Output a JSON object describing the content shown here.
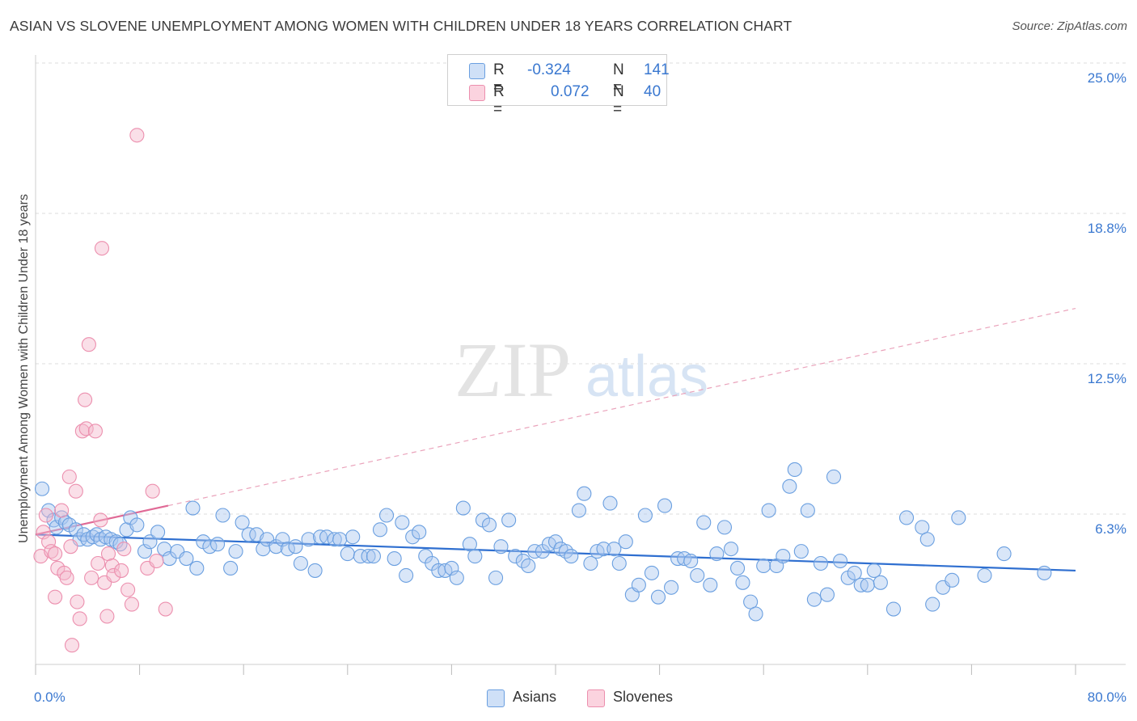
{
  "title": "ASIAN VS SLOVENE UNEMPLOYMENT AMONG WOMEN WITH CHILDREN UNDER 18 YEARS CORRELATION CHART",
  "source": "Source: ZipAtlas.com",
  "watermark": {
    "zip": "ZIP",
    "atlas": "atlas"
  },
  "legend": {
    "rows": [
      {
        "r_label": "R =",
        "r_value": "-0.324",
        "n_label": "N =",
        "n_value": "141",
        "color": "#aac8ef"
      },
      {
        "r_label": "R =",
        "r_value": "0.072",
        "n_label": "N =",
        "n_value": "40",
        "color": "#f5b8cb"
      }
    ]
  },
  "bottom_legend": [
    {
      "label": "Asians",
      "color": "#aac8ef"
    },
    {
      "label": "Slovenes",
      "color": "#f5b8cb"
    }
  ],
  "chart_data": {
    "type": "scatter",
    "title": "ASIAN VS SLOVENE UNEMPLOYMENT AMONG WOMEN WITH CHILDREN UNDER 18 YEARS CORRELATION CHART",
    "xlabel": "",
    "ylabel": "Unemployment Among Women with Children Under 18 years",
    "xlim": [
      0,
      80
    ],
    "ylim": [
      0,
      25
    ],
    "x_tick_labels": [
      "0.0%",
      "80.0%"
    ],
    "y_tick_labels": [
      "25.0%",
      "18.8%",
      "12.5%",
      "6.3%"
    ],
    "y_tick_values": [
      25.0,
      18.8,
      12.5,
      6.3
    ],
    "grid": "horizontal dashed",
    "legend_position": "top-center",
    "series": [
      {
        "name": "Asians",
        "color": "#aac8ef",
        "edge": "#6a9fe0",
        "trend": {
          "x": [
            0,
            80
          ],
          "y": [
            5.4,
            3.9
          ],
          "color": "#2f6fd0",
          "dashed_extension": false
        },
        "points": [
          [
            0.5,
            7.3
          ],
          [
            1.0,
            6.4
          ],
          [
            1.4,
            6.0
          ],
          [
            1.6,
            5.7
          ],
          [
            2.0,
            6.1
          ],
          [
            2.3,
            5.9
          ],
          [
            2.6,
            5.8
          ],
          [
            3.1,
            5.6
          ],
          [
            3.4,
            5.2
          ],
          [
            3.7,
            5.4
          ],
          [
            4.0,
            5.2
          ],
          [
            4.4,
            5.3
          ],
          [
            4.7,
            5.4
          ],
          [
            5.0,
            5.2
          ],
          [
            5.4,
            5.3
          ],
          [
            5.8,
            5.2
          ],
          [
            6.2,
            5.1
          ],
          [
            6.5,
            5.0
          ],
          [
            7.0,
            5.6
          ],
          [
            7.3,
            6.1
          ],
          [
            7.8,
            5.8
          ],
          [
            8.4,
            4.7
          ],
          [
            8.8,
            5.1
          ],
          [
            9.4,
            5.5
          ],
          [
            9.9,
            4.8
          ],
          [
            10.3,
            4.4
          ],
          [
            10.9,
            4.7
          ],
          [
            11.6,
            4.4
          ],
          [
            12.1,
            6.5
          ],
          [
            12.4,
            4.0
          ],
          [
            12.9,
            5.1
          ],
          [
            13.4,
            4.9
          ],
          [
            14.0,
            5.0
          ],
          [
            14.4,
            6.2
          ],
          [
            15.0,
            4.0
          ],
          [
            15.4,
            4.7
          ],
          [
            15.9,
            5.9
          ],
          [
            16.4,
            5.4
          ],
          [
            17.0,
            5.4
          ],
          [
            17.5,
            4.8
          ],
          [
            17.8,
            5.2
          ],
          [
            18.5,
            4.9
          ],
          [
            19.0,
            5.2
          ],
          [
            19.4,
            4.8
          ],
          [
            20.0,
            4.9
          ],
          [
            20.4,
            4.2
          ],
          [
            21.0,
            5.2
          ],
          [
            21.5,
            3.9
          ],
          [
            21.9,
            5.3
          ],
          [
            22.4,
            5.3
          ],
          [
            23.0,
            5.2
          ],
          [
            23.4,
            5.2
          ],
          [
            24.0,
            4.6
          ],
          [
            24.4,
            5.3
          ],
          [
            25.0,
            4.5
          ],
          [
            25.6,
            4.5
          ],
          [
            26.0,
            4.5
          ],
          [
            26.5,
            5.6
          ],
          [
            27.0,
            6.2
          ],
          [
            27.6,
            4.4
          ],
          [
            28.2,
            5.9
          ],
          [
            28.5,
            3.7
          ],
          [
            29.0,
            5.3
          ],
          [
            29.5,
            5.5
          ],
          [
            30.0,
            4.5
          ],
          [
            30.5,
            4.2
          ],
          [
            31.0,
            3.9
          ],
          [
            31.5,
            3.9
          ],
          [
            32.0,
            4.0
          ],
          [
            32.4,
            3.6
          ],
          [
            32.9,
            6.5
          ],
          [
            33.4,
            5.0
          ],
          [
            33.8,
            4.5
          ],
          [
            34.4,
            6.0
          ],
          [
            34.9,
            5.8
          ],
          [
            35.4,
            3.6
          ],
          [
            35.8,
            4.9
          ],
          [
            36.4,
            6.0
          ],
          [
            36.9,
            4.5
          ],
          [
            37.5,
            4.3
          ],
          [
            37.9,
            4.1
          ],
          [
            38.4,
            4.7
          ],
          [
            39.0,
            4.7
          ],
          [
            39.5,
            5.0
          ],
          [
            40.0,
            5.1
          ],
          [
            40.4,
            4.8
          ],
          [
            40.8,
            4.7
          ],
          [
            41.2,
            4.5
          ],
          [
            41.8,
            6.4
          ],
          [
            42.2,
            7.1
          ],
          [
            42.7,
            4.2
          ],
          [
            43.2,
            4.7
          ],
          [
            43.7,
            4.8
          ],
          [
            44.2,
            6.7
          ],
          [
            44.5,
            4.8
          ],
          [
            44.9,
            4.2
          ],
          [
            45.4,
            5.1
          ],
          [
            45.9,
            2.9
          ],
          [
            46.4,
            3.3
          ],
          [
            46.9,
            6.2
          ],
          [
            47.4,
            3.8
          ],
          [
            47.9,
            2.8
          ],
          [
            48.4,
            6.6
          ],
          [
            48.9,
            3.2
          ],
          [
            49.4,
            4.4
          ],
          [
            49.9,
            4.4
          ],
          [
            50.4,
            4.3
          ],
          [
            50.9,
            3.7
          ],
          [
            51.4,
            5.9
          ],
          [
            51.9,
            3.3
          ],
          [
            52.4,
            4.6
          ],
          [
            53.0,
            5.7
          ],
          [
            53.5,
            4.8
          ],
          [
            54.0,
            4.0
          ],
          [
            54.4,
            3.4
          ],
          [
            55.0,
            2.6
          ],
          [
            55.4,
            2.1
          ],
          [
            56.0,
            4.1
          ],
          [
            56.4,
            6.4
          ],
          [
            57.0,
            4.1
          ],
          [
            57.5,
            4.5
          ],
          [
            58.0,
            7.4
          ],
          [
            58.4,
            8.1
          ],
          [
            58.9,
            4.7
          ],
          [
            59.4,
            6.4
          ],
          [
            59.9,
            2.7
          ],
          [
            60.4,
            4.2
          ],
          [
            60.9,
            2.9
          ],
          [
            61.4,
            7.8
          ],
          [
            61.9,
            4.3
          ],
          [
            62.5,
            3.6
          ],
          [
            63.0,
            3.8
          ],
          [
            63.5,
            3.3
          ],
          [
            64.0,
            3.3
          ],
          [
            64.5,
            3.9
          ],
          [
            65.0,
            3.4
          ],
          [
            66.0,
            2.3
          ],
          [
            67.0,
            6.1
          ],
          [
            68.2,
            5.7
          ],
          [
            68.6,
            5.2
          ],
          [
            69.0,
            2.5
          ],
          [
            69.8,
            3.2
          ],
          [
            70.5,
            3.5
          ],
          [
            71.0,
            6.1
          ],
          [
            73.0,
            3.7
          ],
          [
            74.5,
            4.6
          ],
          [
            77.6,
            3.8
          ]
        ]
      },
      {
        "name": "Slovenes",
        "color": "#f5b8cb",
        "edge": "#ec8fae",
        "trend": {
          "x": [
            0,
            10.2
          ],
          "y": [
            5.4,
            6.6
          ],
          "color": "#e06a96",
          "dashed_extension": {
            "x": [
              10.2,
              80
            ],
            "y": [
              6.6,
              14.8
            ]
          }
        },
        "points": [
          [
            0.4,
            4.5
          ],
          [
            0.6,
            5.5
          ],
          [
            0.8,
            6.2
          ],
          [
            1.0,
            5.1
          ],
          [
            1.2,
            4.7
          ],
          [
            1.5,
            4.6
          ],
          [
            1.7,
            4.0
          ],
          [
            2.0,
            6.4
          ],
          [
            1.5,
            2.8
          ],
          [
            2.2,
            3.8
          ],
          [
            2.4,
            3.6
          ],
          [
            2.6,
            7.8
          ],
          [
            2.7,
            4.9
          ],
          [
            3.1,
            7.2
          ],
          [
            3.2,
            2.6
          ],
          [
            3.4,
            1.9
          ],
          [
            3.6,
            9.7
          ],
          [
            3.8,
            11.0
          ],
          [
            3.9,
            9.8
          ],
          [
            4.1,
            13.3
          ],
          [
            4.3,
            3.6
          ],
          [
            4.6,
            9.7
          ],
          [
            4.8,
            4.2
          ],
          [
            5.0,
            6.0
          ],
          [
            5.1,
            17.3
          ],
          [
            5.3,
            3.4
          ],
          [
            5.5,
            2.0
          ],
          [
            5.6,
            4.6
          ],
          [
            5.9,
            4.1
          ],
          [
            6.0,
            3.7
          ],
          [
            6.6,
            3.9
          ],
          [
            6.8,
            4.8
          ],
          [
            7.1,
            3.1
          ],
          [
            7.4,
            2.5
          ],
          [
            7.8,
            22.0
          ],
          [
            8.6,
            4.0
          ],
          [
            9.0,
            7.2
          ],
          [
            9.3,
            4.3
          ],
          [
            10.0,
            2.3
          ],
          [
            2.8,
            0.8
          ]
        ]
      }
    ]
  }
}
